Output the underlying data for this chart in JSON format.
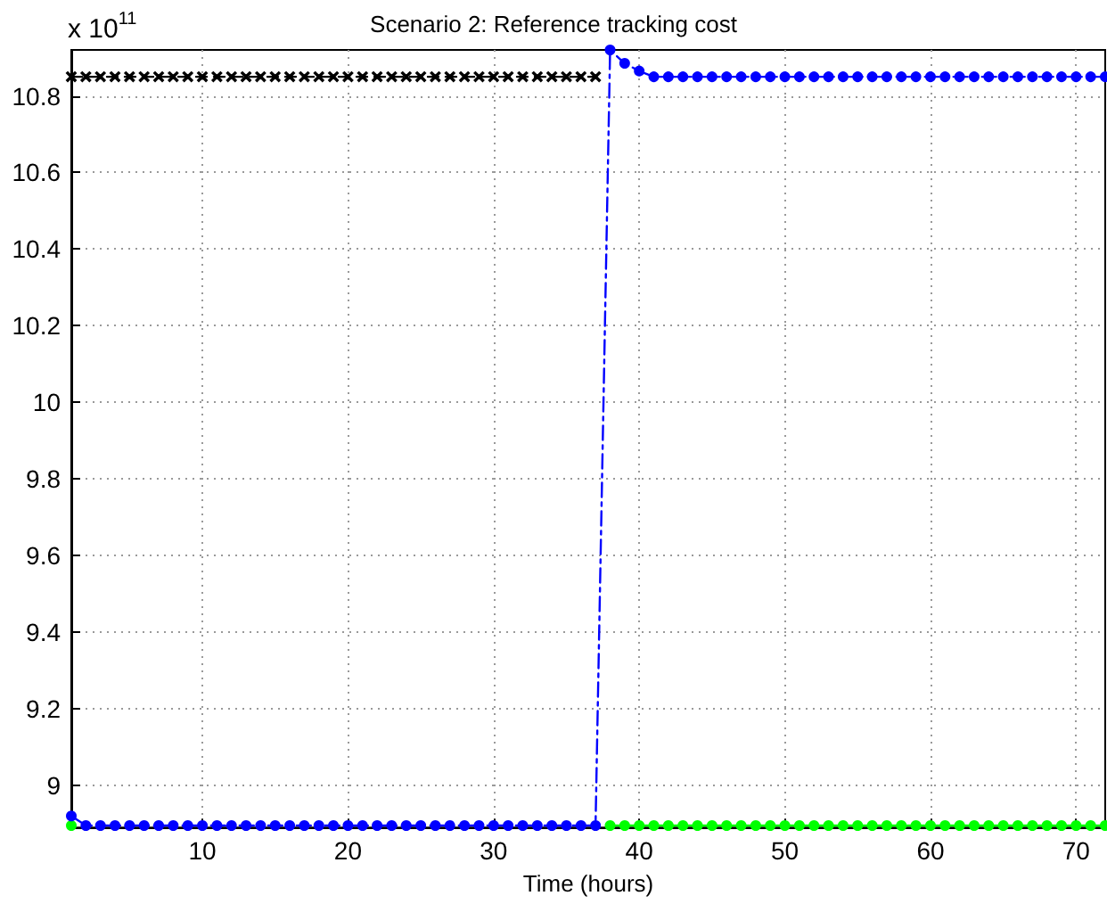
{
  "chart_data": {
    "type": "line",
    "title": "Scenario 2: Reference tracking cost",
    "xlabel": "Time (hours)",
    "annotations": [
      "x 10$^{11}$"
    ],
    "x": [
      1,
      2,
      3,
      4,
      5,
      6,
      7,
      8,
      9,
      10,
      11,
      12,
      13,
      14,
      15,
      16,
      17,
      18,
      19,
      20,
      21,
      22,
      23,
      24,
      25,
      26,
      27,
      28,
      29,
      30,
      31,
      32,
      33,
      34,
      35,
      36,
      37,
      38,
      39,
      40,
      41,
      42,
      43,
      44,
      45,
      46,
      47,
      48,
      49,
      50,
      51,
      52,
      53,
      54,
      55,
      56,
      57,
      58,
      59,
      60,
      61,
      62,
      63,
      64,
      65,
      66,
      67,
      68,
      69,
      70,
      71,
      72
    ],
    "series": [
      {
        "color": "#000000",
        "line_style": "dashed",
        "marker": "cross",
        "values": [
          10.85,
          10.85,
          10.85,
          10.85,
          10.85,
          10.85,
          10.85,
          10.85,
          10.85,
          10.85,
          10.85,
          10.85,
          10.85,
          10.85,
          10.85,
          10.85,
          10.85,
          10.85,
          10.85,
          10.85,
          10.85,
          10.85,
          10.85,
          10.85,
          10.85,
          10.85,
          10.85,
          10.85,
          10.85,
          10.85,
          10.85,
          10.85,
          10.85,
          10.85,
          10.85,
          10.85,
          10.85,
          null,
          null,
          null,
          null,
          null,
          null,
          null,
          null,
          null,
          null,
          null,
          null,
          null,
          null,
          null,
          null,
          null,
          null,
          null,
          null,
          null,
          null,
          null,
          null,
          null,
          null,
          null,
          null,
          null,
          null,
          null,
          null,
          null,
          null,
          null
        ]
      },
      {
        "color": "#00ff00",
        "line_style": "solid",
        "marker": "circle",
        "values": [
          8.895,
          null,
          null,
          null,
          null,
          null,
          null,
          null,
          null,
          null,
          null,
          null,
          null,
          null,
          null,
          null,
          null,
          null,
          null,
          null,
          null,
          null,
          null,
          null,
          null,
          null,
          null,
          null,
          null,
          null,
          null,
          null,
          null,
          null,
          null,
          null,
          null,
          8.895,
          8.895,
          8.895,
          8.895,
          8.895,
          8.895,
          8.895,
          8.895,
          8.895,
          8.895,
          8.895,
          8.895,
          8.895,
          8.895,
          8.895,
          8.895,
          8.895,
          8.895,
          8.895,
          8.895,
          8.895,
          8.895,
          8.895,
          8.895,
          8.895,
          8.895,
          8.895,
          8.895,
          8.895,
          8.895,
          8.895,
          8.895,
          8.895,
          8.895,
          8.895
        ]
      },
      {
        "color": "#0000ff",
        "line_style": "dashdot",
        "marker": "circle",
        "values": [
          8.92,
          8.895,
          8.895,
          8.895,
          8.895,
          8.895,
          8.895,
          8.895,
          8.895,
          8.895,
          8.895,
          8.895,
          8.895,
          8.895,
          8.895,
          8.895,
          8.895,
          8.895,
          8.895,
          8.895,
          8.895,
          8.895,
          8.895,
          8.895,
          8.895,
          8.895,
          8.895,
          8.895,
          8.895,
          8.895,
          8.895,
          8.895,
          8.895,
          8.895,
          8.895,
          8.895,
          8.895,
          10.92,
          10.885,
          10.865,
          10.85,
          10.85,
          10.85,
          10.85,
          10.85,
          10.85,
          10.85,
          10.85,
          10.85,
          10.85,
          10.85,
          10.85,
          10.85,
          10.85,
          10.85,
          10.85,
          10.85,
          10.85,
          10.85,
          10.85,
          10.85,
          10.85,
          10.85,
          10.85,
          10.85,
          10.85,
          10.85,
          10.85,
          10.85,
          10.85,
          10.85,
          10.85
        ]
      }
    ],
    "xlim": [
      1,
      72
    ],
    "xticks": [
      10,
      20,
      30,
      40,
      50,
      60,
      70
    ],
    "ylim": [
      8.89,
      10.92
    ],
    "yticks": [
      9,
      9.2,
      9.4,
      9.6,
      9.8,
      10,
      10.2,
      10.4,
      10.6,
      10.8
    ],
    "grid": true
  }
}
